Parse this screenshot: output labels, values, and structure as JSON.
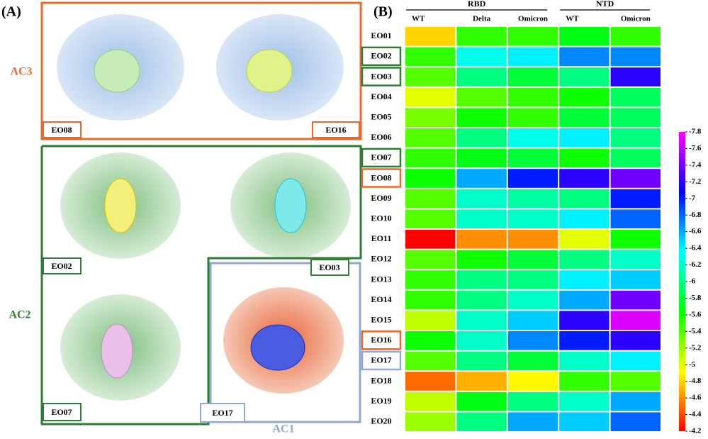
{
  "panel_a": {
    "label": "(A)",
    "groups": {
      "ac3": "AC3",
      "ac2": "AC2",
      "ac1": "AC1"
    },
    "tags": {
      "eo08": "EO08",
      "eo16": "EO16",
      "eo02": "EO02",
      "eo03": "EO03",
      "eo07": "EO07",
      "eo17": "EO17"
    }
  },
  "chart_data": {
    "type": "heatmap",
    "panel_label": "(B)",
    "column_groups": [
      {
        "name": "RBD",
        "span": 3
      },
      {
        "name": "NTD",
        "span": 2
      }
    ],
    "columns": [
      "WT",
      "Delta",
      "Omicron",
      "WT",
      "Omicron"
    ],
    "rows": [
      "EO01",
      "EO02",
      "EO03",
      "EO04",
      "EO05",
      "EO06",
      "EO07",
      "EO08",
      "EO09",
      "EO10",
      "EO11",
      "EO12",
      "EO13",
      "EO14",
      "EO15",
      "EO16",
      "EO17",
      "EO18",
      "EO19",
      "EO20"
    ],
    "row_label_box_colors": [
      null,
      "#2e7d32",
      "#2e7d32",
      null,
      null,
      null,
      "#2e7d32",
      "#e8692e",
      null,
      null,
      null,
      null,
      null,
      null,
      null,
      "#e8692e",
      "#8fa8d8",
      null,
      null,
      null
    ],
    "values": [
      [
        -4.8,
        -5.5,
        -5.5,
        -5.7,
        -5.5
      ],
      [
        -5.5,
        -6.3,
        -6.4,
        -6.7,
        -6.7
      ],
      [
        -5.4,
        -6.0,
        -5.8,
        -6.0,
        -7.2
      ],
      [
        -5.0,
        -5.4,
        -5.5,
        -5.6,
        -5.9
      ],
      [
        -5.3,
        -5.6,
        -5.5,
        -5.8,
        -5.9
      ],
      [
        -5.4,
        -6.0,
        -6.3,
        -6.4,
        -6.0
      ],
      [
        -5.5,
        -5.7,
        -5.8,
        -5.6,
        -5.9
      ],
      [
        -5.6,
        -6.6,
        -7.0,
        -7.2,
        -7.4
      ],
      [
        -5.4,
        -6.2,
        -6.1,
        -6.0,
        -7.0
      ],
      [
        -5.4,
        -6.2,
        -6.2,
        -6.4,
        -6.8
      ],
      [
        -4.2,
        -4.6,
        -4.6,
        -5.0,
        -5.6
      ],
      [
        -5.4,
        -5.6,
        -5.8,
        -6.0,
        -6.2
      ],
      [
        -5.5,
        -6.0,
        -6.0,
        -6.4,
        -6.5
      ],
      [
        -5.5,
        -6.0,
        -6.2,
        -6.6,
        -7.4
      ],
      [
        -5.1,
        -6.2,
        -6.5,
        -7.2,
        -7.7
      ],
      [
        -5.6,
        -6.2,
        -6.7,
        -7.0,
        -7.2
      ],
      [
        -5.4,
        -6.0,
        -5.8,
        -6.2,
        -6.4
      ],
      [
        -4.5,
        -4.7,
        -4.9,
        -5.5,
        -5.4
      ],
      [
        -5.1,
        -5.7,
        -6.0,
        -6.2,
        -6.6
      ],
      [
        -5.2,
        -6.0,
        -6.6,
        -6.5,
        -6.8
      ]
    ],
    "colormap": "rainbow",
    "clim": [
      -4.2,
      -7.8
    ],
    "cticks": [
      -7.8,
      -7.6,
      -7.4,
      -7.2,
      -7.0,
      -6.8,
      -6.6,
      -6.4,
      -6.2,
      -6.0,
      -5.8,
      -5.6,
      -5.4,
      -5.2,
      -5.0,
      -4.8,
      -4.6,
      -4.4,
      -4.2
    ]
  }
}
